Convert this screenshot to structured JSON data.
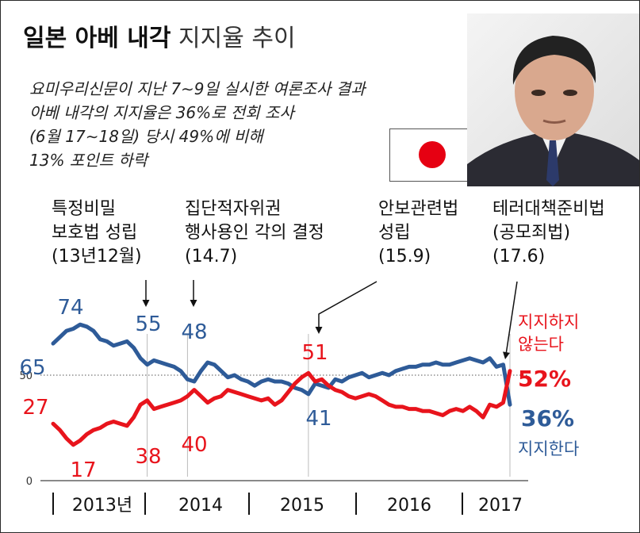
{
  "header": {
    "title_bold": "일본 아베 내각",
    "title_light": "지지율 추이",
    "summary_lines": [
      "요미우리신문이 지난 7∼9일 실시한 여론조사 결과",
      "아베 내각의 지지율은 36%로 전회 조사",
      "(6월 17∼18일) 당시 49%에 비해",
      "13% 포인트 하락"
    ]
  },
  "events": [
    {
      "lines": [
        "특정비밀",
        "보호법 성립",
        "(13년12월)"
      ]
    },
    {
      "lines": [
        "집단적자위권",
        "행사용인 각의 결정",
        "(14.7)"
      ]
    },
    {
      "lines": [
        "안보관련법",
        "성립",
        "(15.9)"
      ]
    },
    {
      "lines": [
        "테러대책준비법",
        "(공모죄법)",
        "(17.6)"
      ]
    }
  ],
  "colors": {
    "support": "#2e5b98",
    "oppose": "#e8141c",
    "flag_red": "#e60012"
  },
  "chart_data": {
    "type": "line",
    "y_ticks": [
      "50",
      "0"
    ],
    "ylim": [
      0,
      100
    ],
    "x_labels": [
      "2013년",
      "2014",
      "2015",
      "2016",
      "2017"
    ],
    "series": [
      {
        "name": "지지한다",
        "legend_value": "36%",
        "values": [
          65,
          68,
          71,
          72,
          74,
          73,
          71,
          67,
          66,
          64,
          65,
          66,
          63,
          58,
          55,
          57,
          56,
          55,
          54,
          52,
          48,
          47,
          52,
          56,
          55,
          52,
          49,
          50,
          48,
          47,
          45,
          47,
          48,
          47,
          47,
          46,
          44,
          43,
          41,
          46,
          45,
          44,
          48,
          47,
          49,
          50,
          51,
          49,
          50,
          51,
          50,
          52,
          53,
          54,
          54,
          55,
          55,
          56,
          55,
          55,
          56,
          57,
          58,
          57,
          56,
          58,
          54,
          55,
          36
        ],
        "labels": [
          {
            "i": 0,
            "text": "65"
          },
          {
            "i": 4,
            "text": "74"
          },
          {
            "i": 14,
            "text": "55"
          },
          {
            "i": 20,
            "text": "48"
          },
          {
            "i": 38,
            "text": "41"
          }
        ]
      },
      {
        "name": "지지하지 않는다",
        "legend_value": "52%",
        "values": [
          27,
          24,
          20,
          17,
          19,
          22,
          24,
          25,
          27,
          28,
          27,
          26,
          30,
          36,
          38,
          34,
          35,
          36,
          37,
          38,
          40,
          43,
          40,
          37,
          39,
          40,
          43,
          42,
          41,
          40,
          39,
          38,
          39,
          36,
          38,
          42,
          46,
          49,
          51,
          47,
          48,
          45,
          43,
          42,
          40,
          39,
          40,
          41,
          40,
          38,
          36,
          35,
          35,
          34,
          34,
          33,
          33,
          32,
          31,
          33,
          34,
          33,
          35,
          33,
          30,
          36,
          35,
          37,
          52
        ],
        "labels": [
          {
            "i": 0,
            "text": "27"
          },
          {
            "i": 3,
            "text": "17"
          },
          {
            "i": 14,
            "text": "38"
          },
          {
            "i": 20,
            "text": "40"
          },
          {
            "i": 38,
            "text": "51"
          }
        ]
      }
    ]
  }
}
